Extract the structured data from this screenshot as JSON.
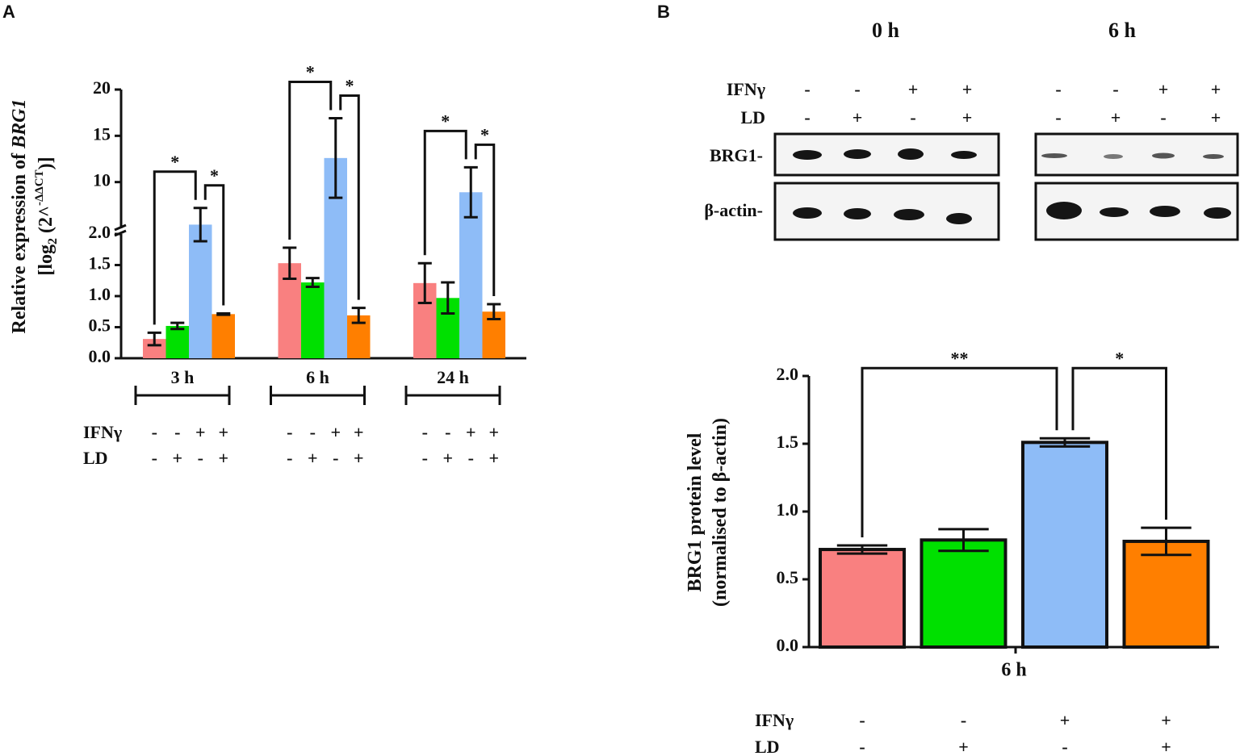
{
  "panels": {
    "a": "A",
    "b": "B"
  },
  "blot": {
    "timepoints": [
      "0 h",
      "6 h"
    ],
    "rows": [
      {
        "label": "IFNγ",
        "signs": [
          "-",
          "-",
          "+",
          "+",
          "-",
          "-",
          "+",
          "+"
        ]
      },
      {
        "label": "LD",
        "signs": [
          "-",
          "+",
          "-",
          "+",
          "-",
          "+",
          "-",
          "+"
        ]
      }
    ],
    "proteins": [
      "BRG1-",
      "β-actin-"
    ]
  },
  "chart_data": [
    {
      "type": "bar",
      "ylabel": [
        [
          {
            "text": "Relative expression of "
          },
          {
            "text": "BRG1",
            "italic": true
          }
        ],
        [
          {
            "text": "[log"
          },
          {
            "text": "2",
            "sub": true
          },
          {
            "text": " (2^"
          },
          {
            "text": "-ΔΔCT",
            "sup": true
          },
          {
            "text": ")]"
          }
        ]
      ],
      "categories": [
        "3 h",
        "6 h",
        "24 h"
      ],
      "series": [
        {
          "color": "#f98080",
          "values": [
            0.31,
            1.53,
            1.21
          ],
          "errors": [
            0.1,
            0.25,
            0.32
          ]
        },
        {
          "color": "#00e000",
          "values": [
            0.52,
            1.22,
            0.97
          ],
          "errors": [
            0.05,
            0.07,
            0.25
          ]
        },
        {
          "color": "#8ebcf7",
          "values": [
            5.4,
            12.6,
            8.9
          ],
          "errors": [
            1.8,
            4.3,
            2.7
          ]
        },
        {
          "color": "#ff7f00",
          "values": [
            0.71,
            0.69,
            0.75
          ],
          "errors": [
            0.01,
            0.12,
            0.12
          ]
        }
      ],
      "ylim": [
        0,
        20
      ],
      "y_break": [
        2,
        5
      ],
      "yticks": [
        {
          "value": 0,
          "label": "0.0"
        },
        0.5,
        {
          "value": 1,
          "label": "1.0"
        },
        1.5,
        {
          "value": 2,
          "label": "2.0"
        },
        10,
        15,
        20
      ],
      "conditions": [
        {
          "label": "IFNγ",
          "signs": [
            "-",
            "-",
            "+",
            "+"
          ]
        },
        {
          "label": "LD",
          "signs": [
            "-",
            "+",
            "-",
            "+"
          ]
        }
      ],
      "significance": [
        {
          "group": 0,
          "bars": [
            0,
            2
          ],
          "label": "*"
        },
        {
          "group": 0,
          "bars": [
            2,
            3
          ],
          "label": "*"
        },
        {
          "group": 1,
          "bars": [
            0,
            2
          ],
          "label": "*"
        },
        {
          "group": 1,
          "bars": [
            2,
            3
          ],
          "label": "*"
        },
        {
          "group": 2,
          "bars": [
            0,
            2
          ],
          "label": "*"
        },
        {
          "group": 2,
          "bars": [
            2,
            3
          ],
          "label": "*"
        }
      ]
    },
    {
      "type": "bar",
      "ylabel": [
        [
          {
            "text": "BRG1 protein level"
          }
        ],
        [
          {
            "text": "(normalised to β-actin)"
          }
        ]
      ],
      "xlabel": "6 h",
      "values": [
        0.72,
        0.79,
        1.51,
        0.78
      ],
      "errors": [
        0.03,
        0.08,
        0.03,
        0.1
      ],
      "colors": [
        "#f98080",
        "#00e000",
        "#8ebcf7",
        "#ff7f00"
      ],
      "ylim": [
        0,
        2
      ],
      "yticks": [
        {
          "value": 0,
          "label": "0.0"
        },
        0.5,
        {
          "value": 1,
          "label": "1.0"
        },
        1.5,
        {
          "value": 2,
          "label": "2.0"
        }
      ],
      "conditions": [
        {
          "label": "IFNγ",
          "signs": [
            "-",
            "-",
            "+",
            "+"
          ]
        },
        {
          "label": "LD",
          "signs": [
            "-",
            "+",
            "-",
            "+"
          ]
        }
      ],
      "significance": [
        {
          "bars": [
            0,
            2
          ],
          "label": "**"
        },
        {
          "bars": [
            2,
            3
          ],
          "label": "*"
        }
      ]
    }
  ]
}
